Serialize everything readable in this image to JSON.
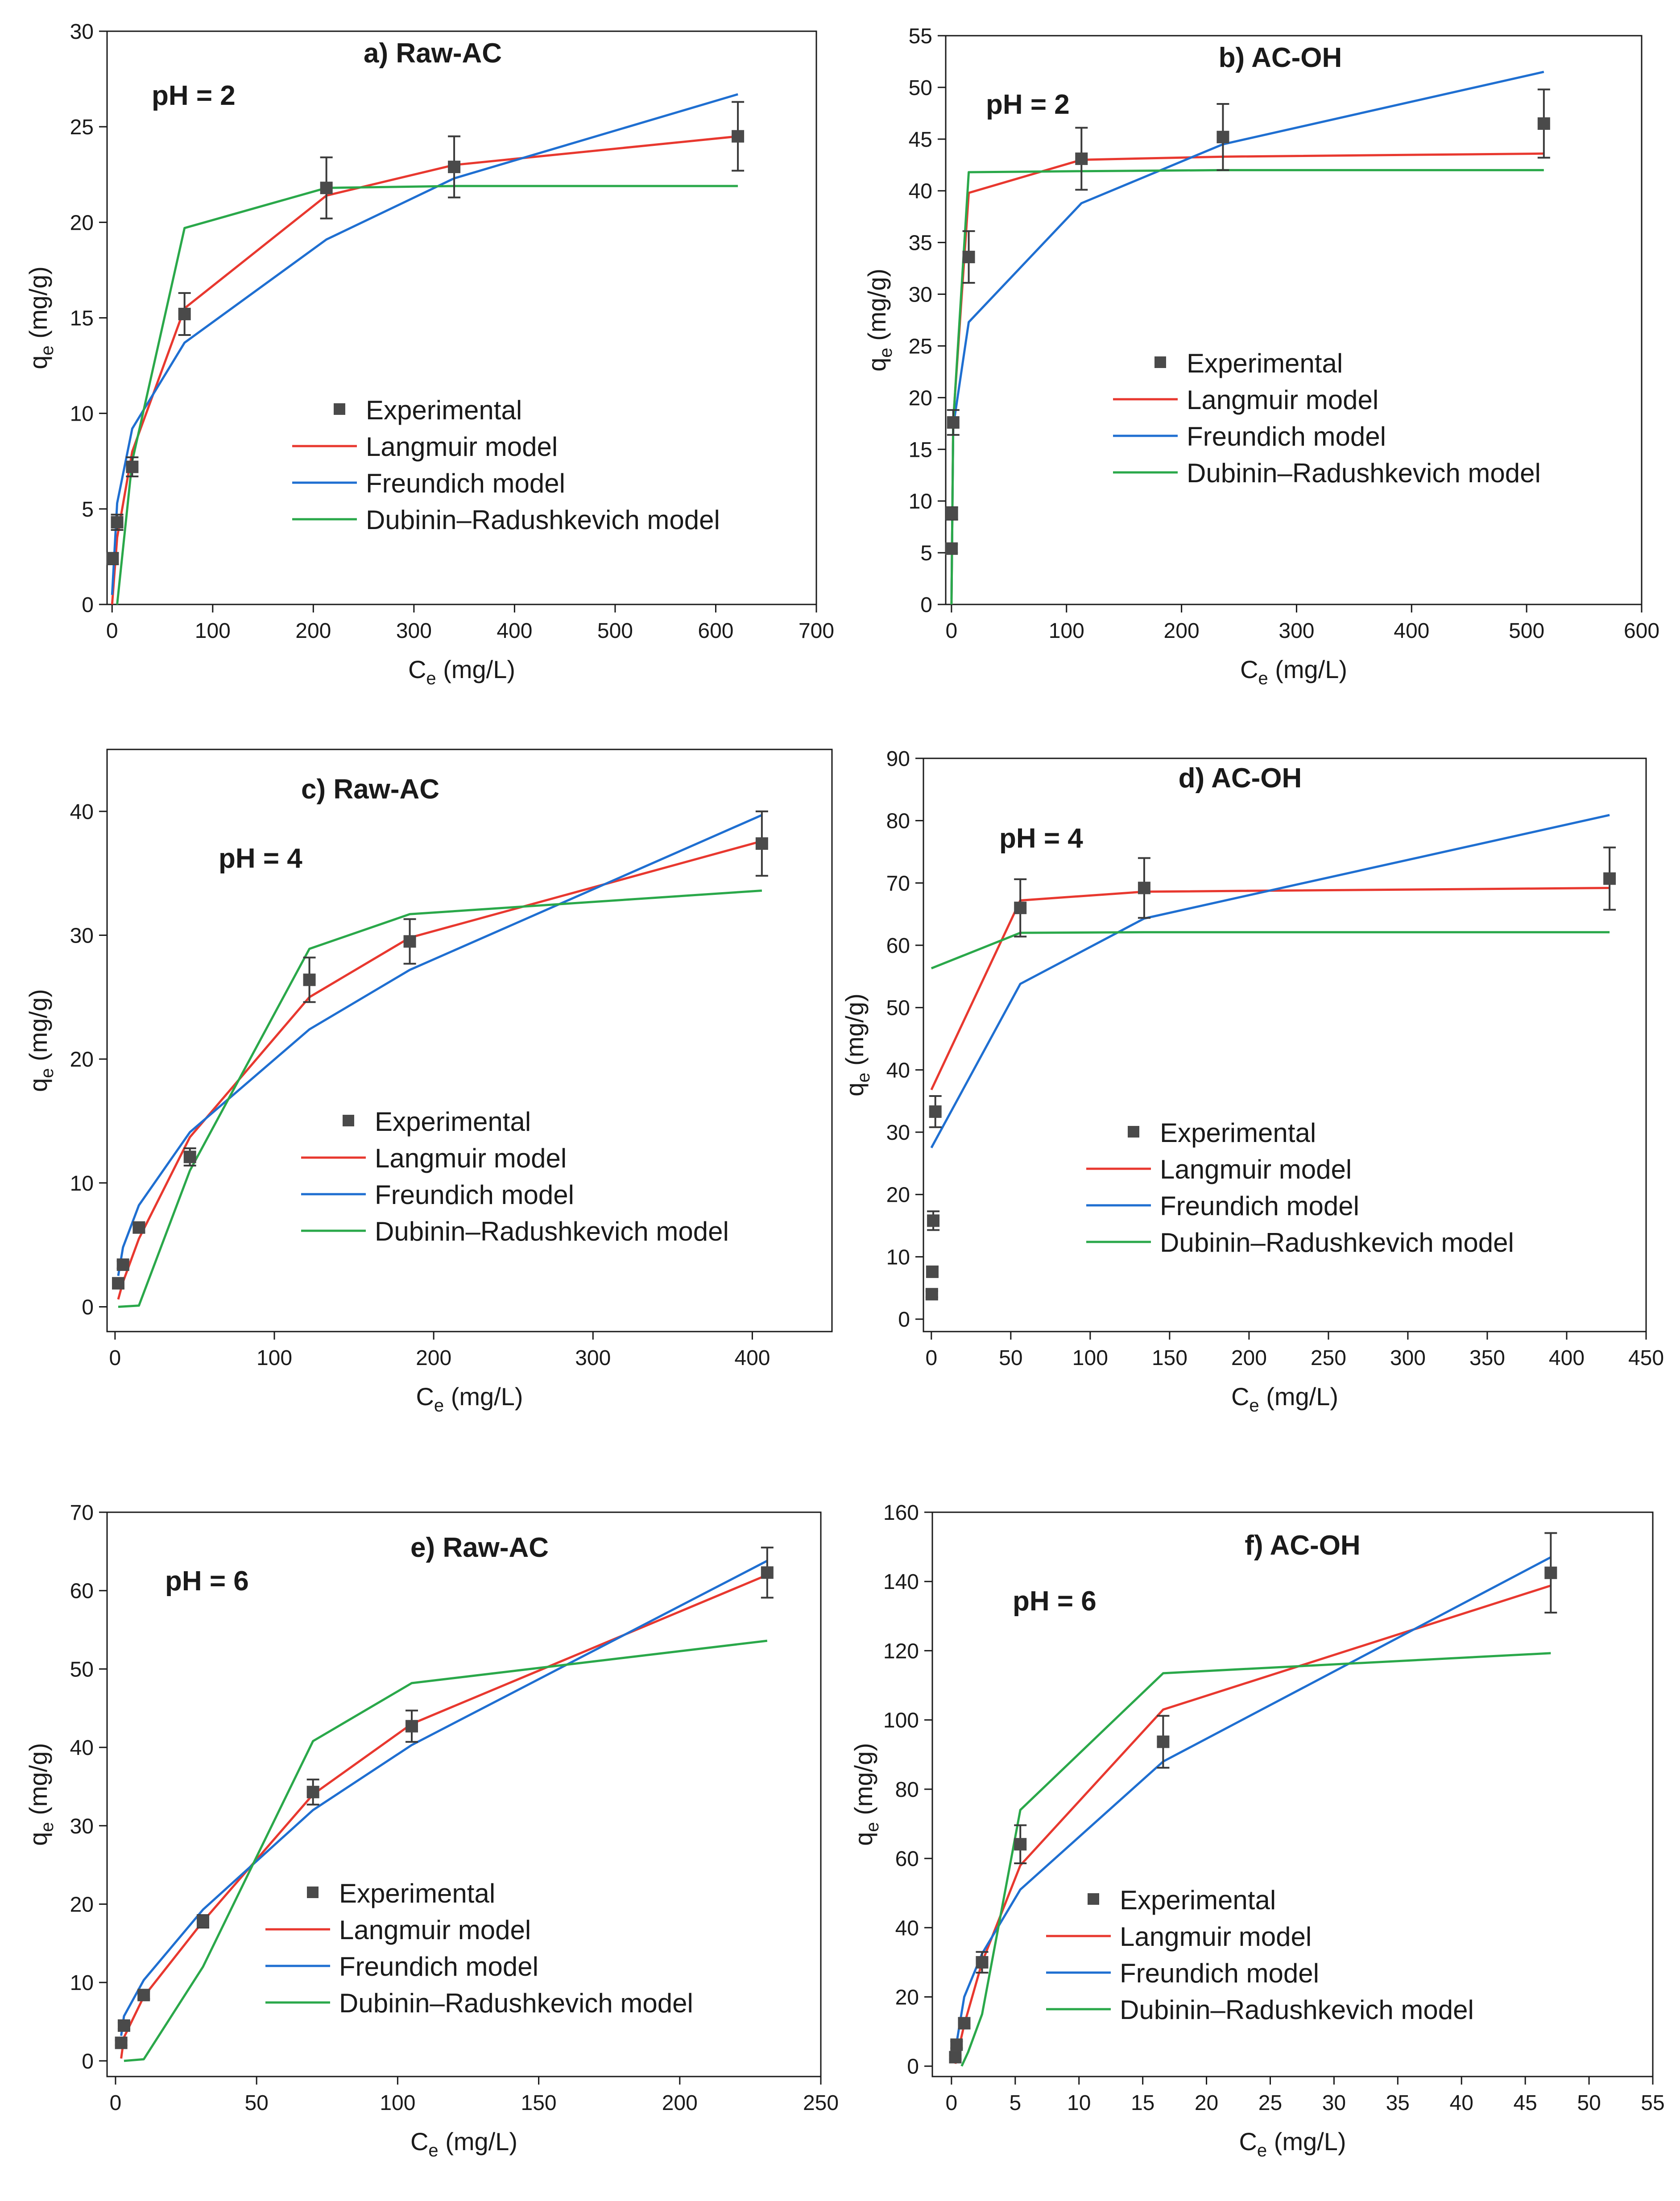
{
  "colors": {
    "experimental": "#4a4a4a",
    "langmuir": "#e8382f",
    "freundlich": "#1f6fd1",
    "dr": "#2aa84a",
    "axis": "#1a1a1a"
  },
  "chart_data": [
    {
      "id": "a",
      "type": "line",
      "title": "a) Raw-AC",
      "annotation": "pH = 2",
      "xlabel": "Ce (mg/L)",
      "xlabel_main": "C",
      "xlabel_sub": "e",
      "xlabel_unit": " (mg/L)",
      "ylabel": "qe (mg/g)",
      "ylabel_main": "q",
      "ylabel_sub": "e",
      "ylabel_unit": " (mg/g)",
      "xlim": [
        -5,
        700
      ],
      "ylim": [
        0,
        30
      ],
      "xticks": [
        0,
        100,
        200,
        300,
        400,
        500,
        600,
        700
      ],
      "yticks": [
        0,
        5,
        10,
        15,
        20,
        25,
        30
      ],
      "legend": [
        "Experimental",
        "Langmuir model",
        "Freundich model",
        "Dubinin–Radushkevich model"
      ],
      "experimental": {
        "x": [
          0.5,
          5,
          20,
          72,
          213,
          340,
          622
        ],
        "y": [
          2.4,
          4.3,
          7.2,
          15.2,
          21.8,
          22.9,
          24.5
        ],
        "err": [
          0.3,
          0.4,
          0.5,
          1.1,
          1.6,
          1.6,
          1.8
        ]
      },
      "series": [
        {
          "name": "Langmuir model",
          "key": "langmuir",
          "x": [
            0,
            5,
            20,
            72,
            213,
            340,
            622
          ],
          "y": [
            0,
            3.5,
            8.0,
            15.5,
            21.4,
            23.0,
            24.5
          ]
        },
        {
          "name": "Freundich model",
          "key": "freundlich",
          "x": [
            0,
            5,
            20,
            72,
            213,
            340,
            622
          ],
          "y": [
            0.5,
            5.3,
            9.2,
            13.7,
            19.1,
            22.3,
            26.7
          ]
        },
        {
          "name": "Dubinin–Radushkevich model",
          "key": "dr",
          "x": [
            5,
            20,
            72,
            213,
            340,
            622
          ],
          "y": [
            0,
            7.5,
            19.7,
            21.8,
            21.9,
            21.9
          ]
        }
      ]
    },
    {
      "id": "b",
      "type": "line",
      "title": "b) AC-OH",
      "annotation": "pH = 2",
      "xlabel": "Ce (mg/L)",
      "xlabel_main": "C",
      "xlabel_sub": "e",
      "xlabel_unit": " (mg/L)",
      "ylabel": "qe (mg/g)",
      "ylabel_main": "q",
      "ylabel_sub": "e",
      "ylabel_unit": " (mg/g)",
      "xlim": [
        -5,
        600
      ],
      "ylim": [
        0,
        55
      ],
      "xticks": [
        0,
        100,
        200,
        300,
        400,
        500,
        600
      ],
      "yticks": [
        0,
        5,
        10,
        15,
        20,
        25,
        30,
        35,
        40,
        45,
        50,
        55
      ],
      "legend": [
        "Experimental",
        "Langmuir model",
        "Freundich model",
        "Dubinin–Radushkevich model"
      ],
      "experimental": {
        "x": [
          0.1,
          0.3,
          1.5,
          15,
          113,
          236,
          515
        ],
        "y": [
          5.4,
          8.8,
          17.6,
          33.6,
          43.1,
          45.2,
          46.5
        ],
        "err": [
          0.4,
          0.6,
          1.2,
          2.5,
          3.0,
          3.2,
          3.3
        ]
      },
      "series": [
        {
          "name": "Langmuir model",
          "key": "langmuir",
          "x": [
            0,
            1.5,
            15,
            113,
            236,
            515
          ],
          "y": [
            0,
            17.8,
            39.8,
            43.0,
            43.3,
            43.6
          ]
        },
        {
          "name": "Freundich model",
          "key": "freundlich",
          "x": [
            0,
            1.5,
            15,
            113,
            236,
            515
          ],
          "y": [
            0.5,
            17.2,
            27.3,
            38.8,
            44.5,
            51.5
          ]
        },
        {
          "name": "Dubinin–Radushkevich model",
          "key": "dr",
          "x": [
            0,
            1.5,
            15,
            113,
            236,
            515
          ],
          "y": [
            0,
            17.6,
            41.8,
            41.9,
            42.0,
            42.0
          ]
        }
      ]
    },
    {
      "id": "c",
      "type": "line",
      "title": "c) Raw-AC",
      "annotation": "pH = 4",
      "xlabel": "Ce (mg/L)",
      "xlabel_main": "C",
      "xlabel_sub": "e",
      "xlabel_unit": " (mg/L)",
      "ylabel": "qe (mg/g)",
      "ylabel_main": "q",
      "ylabel_sub": "e",
      "ylabel_unit": " (mg/g)",
      "xlim": [
        -5,
        450
      ],
      "ylim": [
        -2,
        45
      ],
      "xticks": [
        0,
        100,
        200,
        300,
        400
      ],
      "yticks": [
        0,
        10,
        20,
        30,
        40
      ],
      "legend": [
        "Experimental",
        "Langmuir model",
        "Freundich model",
        "Dubinin–Radushkevich model"
      ],
      "experimental": {
        "x": [
          2,
          5,
          15,
          47,
          122,
          185,
          406
        ],
        "y": [
          1.9,
          3.4,
          6.4,
          12.1,
          26.4,
          29.5,
          37.4
        ],
        "err": [
          0.2,
          0.3,
          0.4,
          0.7,
          1.8,
          1.8,
          2.6
        ]
      },
      "series": [
        {
          "name": "Langmuir model",
          "key": "langmuir",
          "x": [
            2,
            5,
            15,
            47,
            122,
            185,
            406
          ],
          "y": [
            0.6,
            2.0,
            5.5,
            13.7,
            25.0,
            29.8,
            37.6
          ]
        },
        {
          "name": "Freundich model",
          "key": "freundlich",
          "x": [
            2,
            5,
            15,
            47,
            122,
            185,
            406
          ],
          "y": [
            2.5,
            4.8,
            8.2,
            14.1,
            22.4,
            27.2,
            39.7
          ]
        },
        {
          "name": "Dubinin–Radushkevich model",
          "key": "dr",
          "x": [
            2,
            15,
            47,
            122,
            185,
            406
          ],
          "y": [
            0,
            0.1,
            11.0,
            28.9,
            31.7,
            33.6
          ]
        }
      ]
    },
    {
      "id": "d",
      "type": "line",
      "title": "d) AC-OH",
      "annotation": "pH = 4",
      "xlabel": "Ce (mg/L)",
      "xlabel_main": "C",
      "xlabel_sub": "e",
      "xlabel_unit": " (mg/L)",
      "ylabel": "qe (mg/g)",
      "ylabel_main": "q",
      "ylabel_sub": "e",
      "ylabel_unit": " (mg/g)",
      "xlim": [
        -5,
        450
      ],
      "ylim": [
        -2,
        90
      ],
      "xticks": [
        0,
        50,
        100,
        150,
        200,
        250,
        300,
        350,
        400,
        450
      ],
      "yticks": [
        0,
        10,
        20,
        30,
        40,
        50,
        60,
        70,
        80,
        90
      ],
      "legend": [
        "Experimental",
        "Langmuir model",
        "Freundich model",
        "Dubinin–Radushkevich model"
      ],
      "experimental": {
        "x": [
          0.3,
          0.6,
          1.2,
          2.5,
          56,
          134,
          427
        ],
        "y": [
          4.0,
          7.6,
          15.8,
          33.3,
          66.0,
          69.2,
          70.7
        ],
        "err": [
          0.5,
          0.8,
          1.5,
          2.5,
          4.6,
          4.8,
          5.0
        ]
      },
      "series": [
        {
          "name": "Langmuir model",
          "key": "langmuir",
          "x": [
            0,
            56,
            134,
            427
          ],
          "y": [
            36.8,
            67.2,
            68.6,
            69.2
          ]
        },
        {
          "name": "Freundich model",
          "key": "freundlich",
          "x": [
            0,
            56,
            134,
            427
          ],
          "y": [
            27.5,
            53.8,
            64.3,
            80.9
          ]
        },
        {
          "name": "Dubinin–Radushkevich model",
          "key": "dr",
          "x": [
            0,
            56,
            134,
            427
          ],
          "y": [
            56.3,
            62.0,
            62.1,
            62.1
          ]
        }
      ]
    },
    {
      "id": "e",
      "type": "line",
      "title": "e) Raw-AC",
      "annotation": "pH = 6",
      "xlabel": "Ce (mg/L)",
      "xlabel_main": "C",
      "xlabel_sub": "e",
      "xlabel_unit": " (mg/L)",
      "ylabel": "qe (mg/g)",
      "ylabel_main": "q",
      "ylabel_sub": "e",
      "ylabel_unit": " (mg/g)",
      "xlim": [
        -3,
        250
      ],
      "ylim": [
        -2,
        70
      ],
      "xticks": [
        0,
        50,
        100,
        150,
        200,
        250
      ],
      "yticks": [
        0,
        10,
        20,
        30,
        40,
        50,
        60,
        70
      ],
      "legend": [
        "Experimental",
        "Langmuir model",
        "Freundich model",
        "Dubinin–Radushkevich model"
      ],
      "experimental": {
        "x": [
          2,
          3,
          10,
          31,
          70,
          105,
          231
        ],
        "y": [
          2.3,
          4.5,
          8.4,
          17.8,
          34.3,
          42.7,
          62.3
        ],
        "err": [
          0.3,
          0.4,
          0.5,
          0.8,
          1.6,
          2.0,
          3.2
        ]
      },
      "series": [
        {
          "name": "Langmuir model",
          "key": "langmuir",
          "x": [
            2,
            3,
            10,
            31,
            70,
            105,
            231
          ],
          "y": [
            0.3,
            3.0,
            8.2,
            17.8,
            34.0,
            43.0,
            62.0
          ]
        },
        {
          "name": "Freundich model",
          "key": "freundlich",
          "x": [
            2,
            3,
            10,
            31,
            70,
            105,
            231
          ],
          "y": [
            3.2,
            5.7,
            10.3,
            19.3,
            32.0,
            40.3,
            63.8
          ]
        },
        {
          "name": "Dubinin–Radushkevich model",
          "key": "dr",
          "x": [
            3,
            10,
            31,
            70,
            105,
            231
          ],
          "y": [
            0,
            0.2,
            12.0,
            40.8,
            48.2,
            53.6
          ]
        }
      ]
    },
    {
      "id": "f",
      "type": "line",
      "title": "f) AC-OH",
      "annotation": "pH = 6",
      "xlabel": "Ce (mg/L)",
      "xlabel_main": "C",
      "xlabel_sub": "e",
      "xlabel_unit": " (mg/L)",
      "ylabel": "qe (mg/g)",
      "ylabel_main": "q",
      "ylabel_sub": "e",
      "ylabel_unit": " (mg/g)",
      "xlim": [
        -1.5,
        55
      ],
      "ylim": [
        -3,
        160
      ],
      "xticks": [
        0,
        5,
        10,
        15,
        20,
        25,
        30,
        35,
        40,
        45,
        50,
        55
      ],
      "yticks": [
        0,
        20,
        40,
        60,
        80,
        100,
        120,
        140,
        160
      ],
      "legend": [
        "Experimental",
        "Langmuir model",
        "Freundich model",
        "Dubinin–Radushkevich model"
      ],
      "experimental": {
        "x": [
          0.3,
          0.4,
          1.0,
          2.4,
          5.4,
          16.6,
          47.0
        ],
        "y": [
          2.6,
          6.2,
          12.4,
          30.0,
          64.1,
          93.7,
          142.5
        ],
        "err": [
          0.5,
          1.0,
          1.5,
          3.0,
          5.5,
          7.5,
          11.5
        ]
      },
      "series": [
        {
          "name": "Langmuir model",
          "key": "langmuir",
          "x": [
            0.3,
            1.0,
            2.4,
            5.4,
            16.6,
            47.0
          ],
          "y": [
            0.7,
            12.0,
            30.0,
            58.0,
            103.0,
            138.8
          ]
        },
        {
          "name": "Freundich model",
          "key": "freundlich",
          "x": [
            0.3,
            1.0,
            2.4,
            5.4,
            16.6,
            47.0
          ],
          "y": [
            4.5,
            20.0,
            32.5,
            51.0,
            88.0,
            147.0
          ]
        },
        {
          "name": "Dubinin–Radushkevich model",
          "key": "dr",
          "x": [
            0.8,
            1.3,
            2.4,
            5.4,
            16.6,
            47.0
          ],
          "y": [
            0,
            4.0,
            15.0,
            74.0,
            113.5,
            119.3
          ]
        }
      ]
    }
  ]
}
